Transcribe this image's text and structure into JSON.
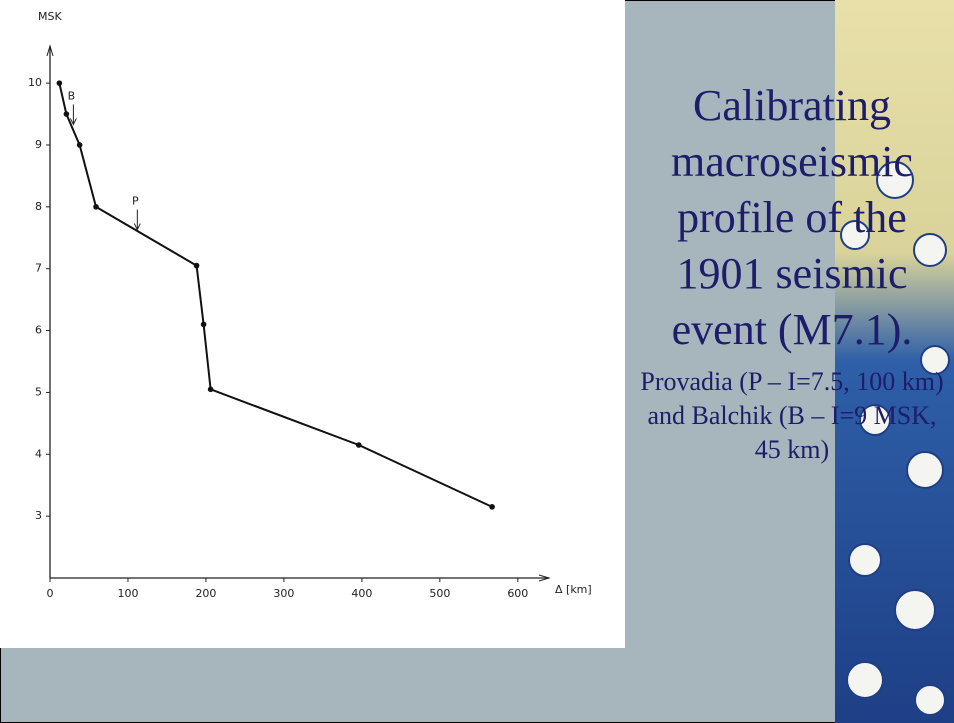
{
  "chart_data": {
    "type": "line",
    "title": "Calibrating macroseismic profile of the 1901 seismic event (M7.1).",
    "subtitle": "Provadia (P – I=7.5, 100 km) and Balchik (B – I=9 MSK, 45 km)",
    "y_label": "MSK",
    "x_label": "Δ [km]",
    "x": [
      12,
      21,
      38,
      59,
      188,
      197,
      206,
      396,
      567
    ],
    "series": [
      {
        "color": "#111111",
        "values": [
          10,
          9.5,
          9,
          8,
          7.05,
          6.1,
          5.05,
          4.15,
          3.15
        ]
      }
    ],
    "annotations": [
      {
        "text": "B",
        "x": 30,
        "y": 9.3
      },
      {
        "text": "P",
        "x": 112,
        "y": 7.6
      }
    ],
    "xlim": [
      0,
      640
    ],
    "ylim": [
      2,
      10.6
    ],
    "xticks": [
      0,
      100,
      200,
      300,
      400,
      500,
      600
    ],
    "yticks": [
      3,
      4,
      5,
      6,
      7,
      8,
      9,
      10
    ]
  }
}
